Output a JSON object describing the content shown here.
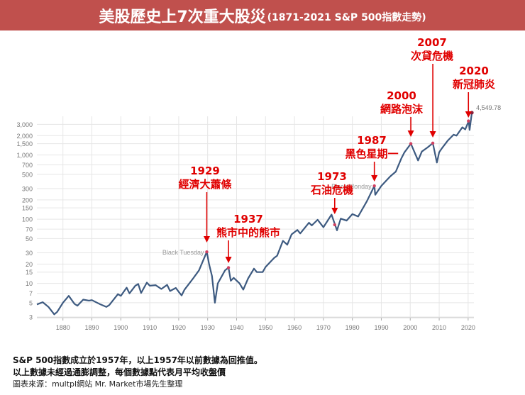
{
  "header": {
    "title": "美股歷史上7次重大股災",
    "subtitle": "(1871-2021 S&P 500指數走勢)"
  },
  "chart_data": {
    "type": "line",
    "scale": "log",
    "xlim": [
      1871,
      2022
    ],
    "ylim": [
      3,
      4000
    ],
    "x_ticks": [
      1880,
      1890,
      1900,
      1910,
      1920,
      1930,
      1940,
      1950,
      1960,
      1970,
      1980,
      1990,
      2000,
      2010,
      2020
    ],
    "y_ticks": [
      3,
      5,
      7,
      10,
      15,
      20,
      30,
      50,
      70,
      100,
      150,
      200,
      300,
      500,
      700,
      1000,
      1500,
      2000,
      3000
    ],
    "y_tick_labels": [
      "3",
      "5",
      "7",
      "10",
      "15",
      "20",
      "30",
      "50",
      "70",
      "100",
      "150",
      "200",
      "300",
      "500",
      "700",
      "1,000",
      "1,500",
      "2,000",
      "3,000"
    ],
    "grid": true,
    "line_color": "#3d5a80",
    "series": [
      {
        "x": [
          1871,
          1873,
          1875,
          1877,
          1878,
          1880,
          1882,
          1884,
          1885,
          1887,
          1889,
          1890,
          1893,
          1895,
          1896,
          1899,
          1900,
          1902,
          1903,
          1905,
          1906,
          1907,
          1909,
          1910,
          1912,
          1914,
          1916,
          1917,
          1919,
          1920,
          1921,
          1922,
          1925,
          1927,
          1929.7,
          1930.5,
          1931.5,
          1932.5,
          1933.5,
          1936,
          1937.2,
          1938,
          1939,
          1941,
          1942.3,
          1944,
          1946,
          1947,
          1949,
          1950,
          1953,
          1954,
          1956,
          1957.5,
          1959,
          1961,
          1962,
          1965,
          1966,
          1968,
          1970,
          1972.8,
          1974.7,
          1976,
          1978,
          1980,
          1982,
          1985,
          1987.6,
          1987.9,
          1990,
          1993,
          1995,
          1997,
          1998,
          2000.2,
          2002.7,
          2004,
          2006,
          2007.8,
          2009.2,
          2010,
          2011,
          2013,
          2015,
          2016,
          2018,
          2019,
          2020.2,
          2020.5,
          2021.3
        ],
        "y": [
          4.7,
          5.1,
          4.3,
          3.3,
          3.6,
          5,
          6.4,
          4.8,
          4.5,
          5.6,
          5.4,
          5.5,
          4.7,
          4.3,
          4.6,
          6.8,
          6.4,
          8.6,
          7,
          9.2,
          9.8,
          7.1,
          10.3,
          9.2,
          9.4,
          8.2,
          9.5,
          7.6,
          8.5,
          7.4,
          6.5,
          8,
          12,
          16,
          31,
          20,
          13,
          5,
          10,
          16,
          17.6,
          11,
          12.2,
          10,
          8,
          12,
          17,
          15,
          15,
          18,
          25,
          27,
          46,
          40,
          58,
          68,
          60,
          88,
          80,
          98,
          75,
          118,
          67,
          102,
          95,
          120,
          110,
          190,
          330,
          240,
          330,
          460,
          550,
          900,
          1100,
          1500,
          820,
          1130,
          1310,
          1530,
          760,
          1100,
          1280,
          1680,
          2070,
          2000,
          2700,
          2500,
          3380,
          2450,
          4549.78
        ]
      }
    ],
    "end_label": "4,549.78",
    "point_labels": [
      {
        "x": 1929.7,
        "y": 31,
        "text": "Black Tuesday"
      },
      {
        "x": 1987.6,
        "y": 330,
        "text": "Black Monday"
      }
    ],
    "annotations": [
      {
        "year": "1929",
        "label": "經濟大蕭條",
        "x": 1929.7,
        "y": 31
      },
      {
        "year": "1937",
        "label": "熊市中的熊市",
        "x": 1937.2,
        "y": 17.6
      },
      {
        "year": "1973",
        "label": "石油危機",
        "x": 1973.9,
        "y": 82
      },
      {
        "year": "1987",
        "label": "黑色星期一",
        "x": 1987.6,
        "y": 330
      },
      {
        "year": "2000",
        "label": "網路泡沫",
        "x": 2000.2,
        "y": 1500
      },
      {
        "year": "2007",
        "label": "次貸危機",
        "x": 2007.8,
        "y": 1530
      },
      {
        "year": "2020",
        "label": "新冠肺炎",
        "x": 2020.1,
        "y": 3380
      }
    ],
    "annotation_color": "#e00000"
  },
  "notes": {
    "line1": "S&P 500指數成立於1957年，以上1957年以前數據為回推值。",
    "line2": "以上數據未經過通膨調整，每個數據點代表月平均收盤價",
    "source": "圖表來源：multpl網站  Mr. Market市場先生整理"
  }
}
